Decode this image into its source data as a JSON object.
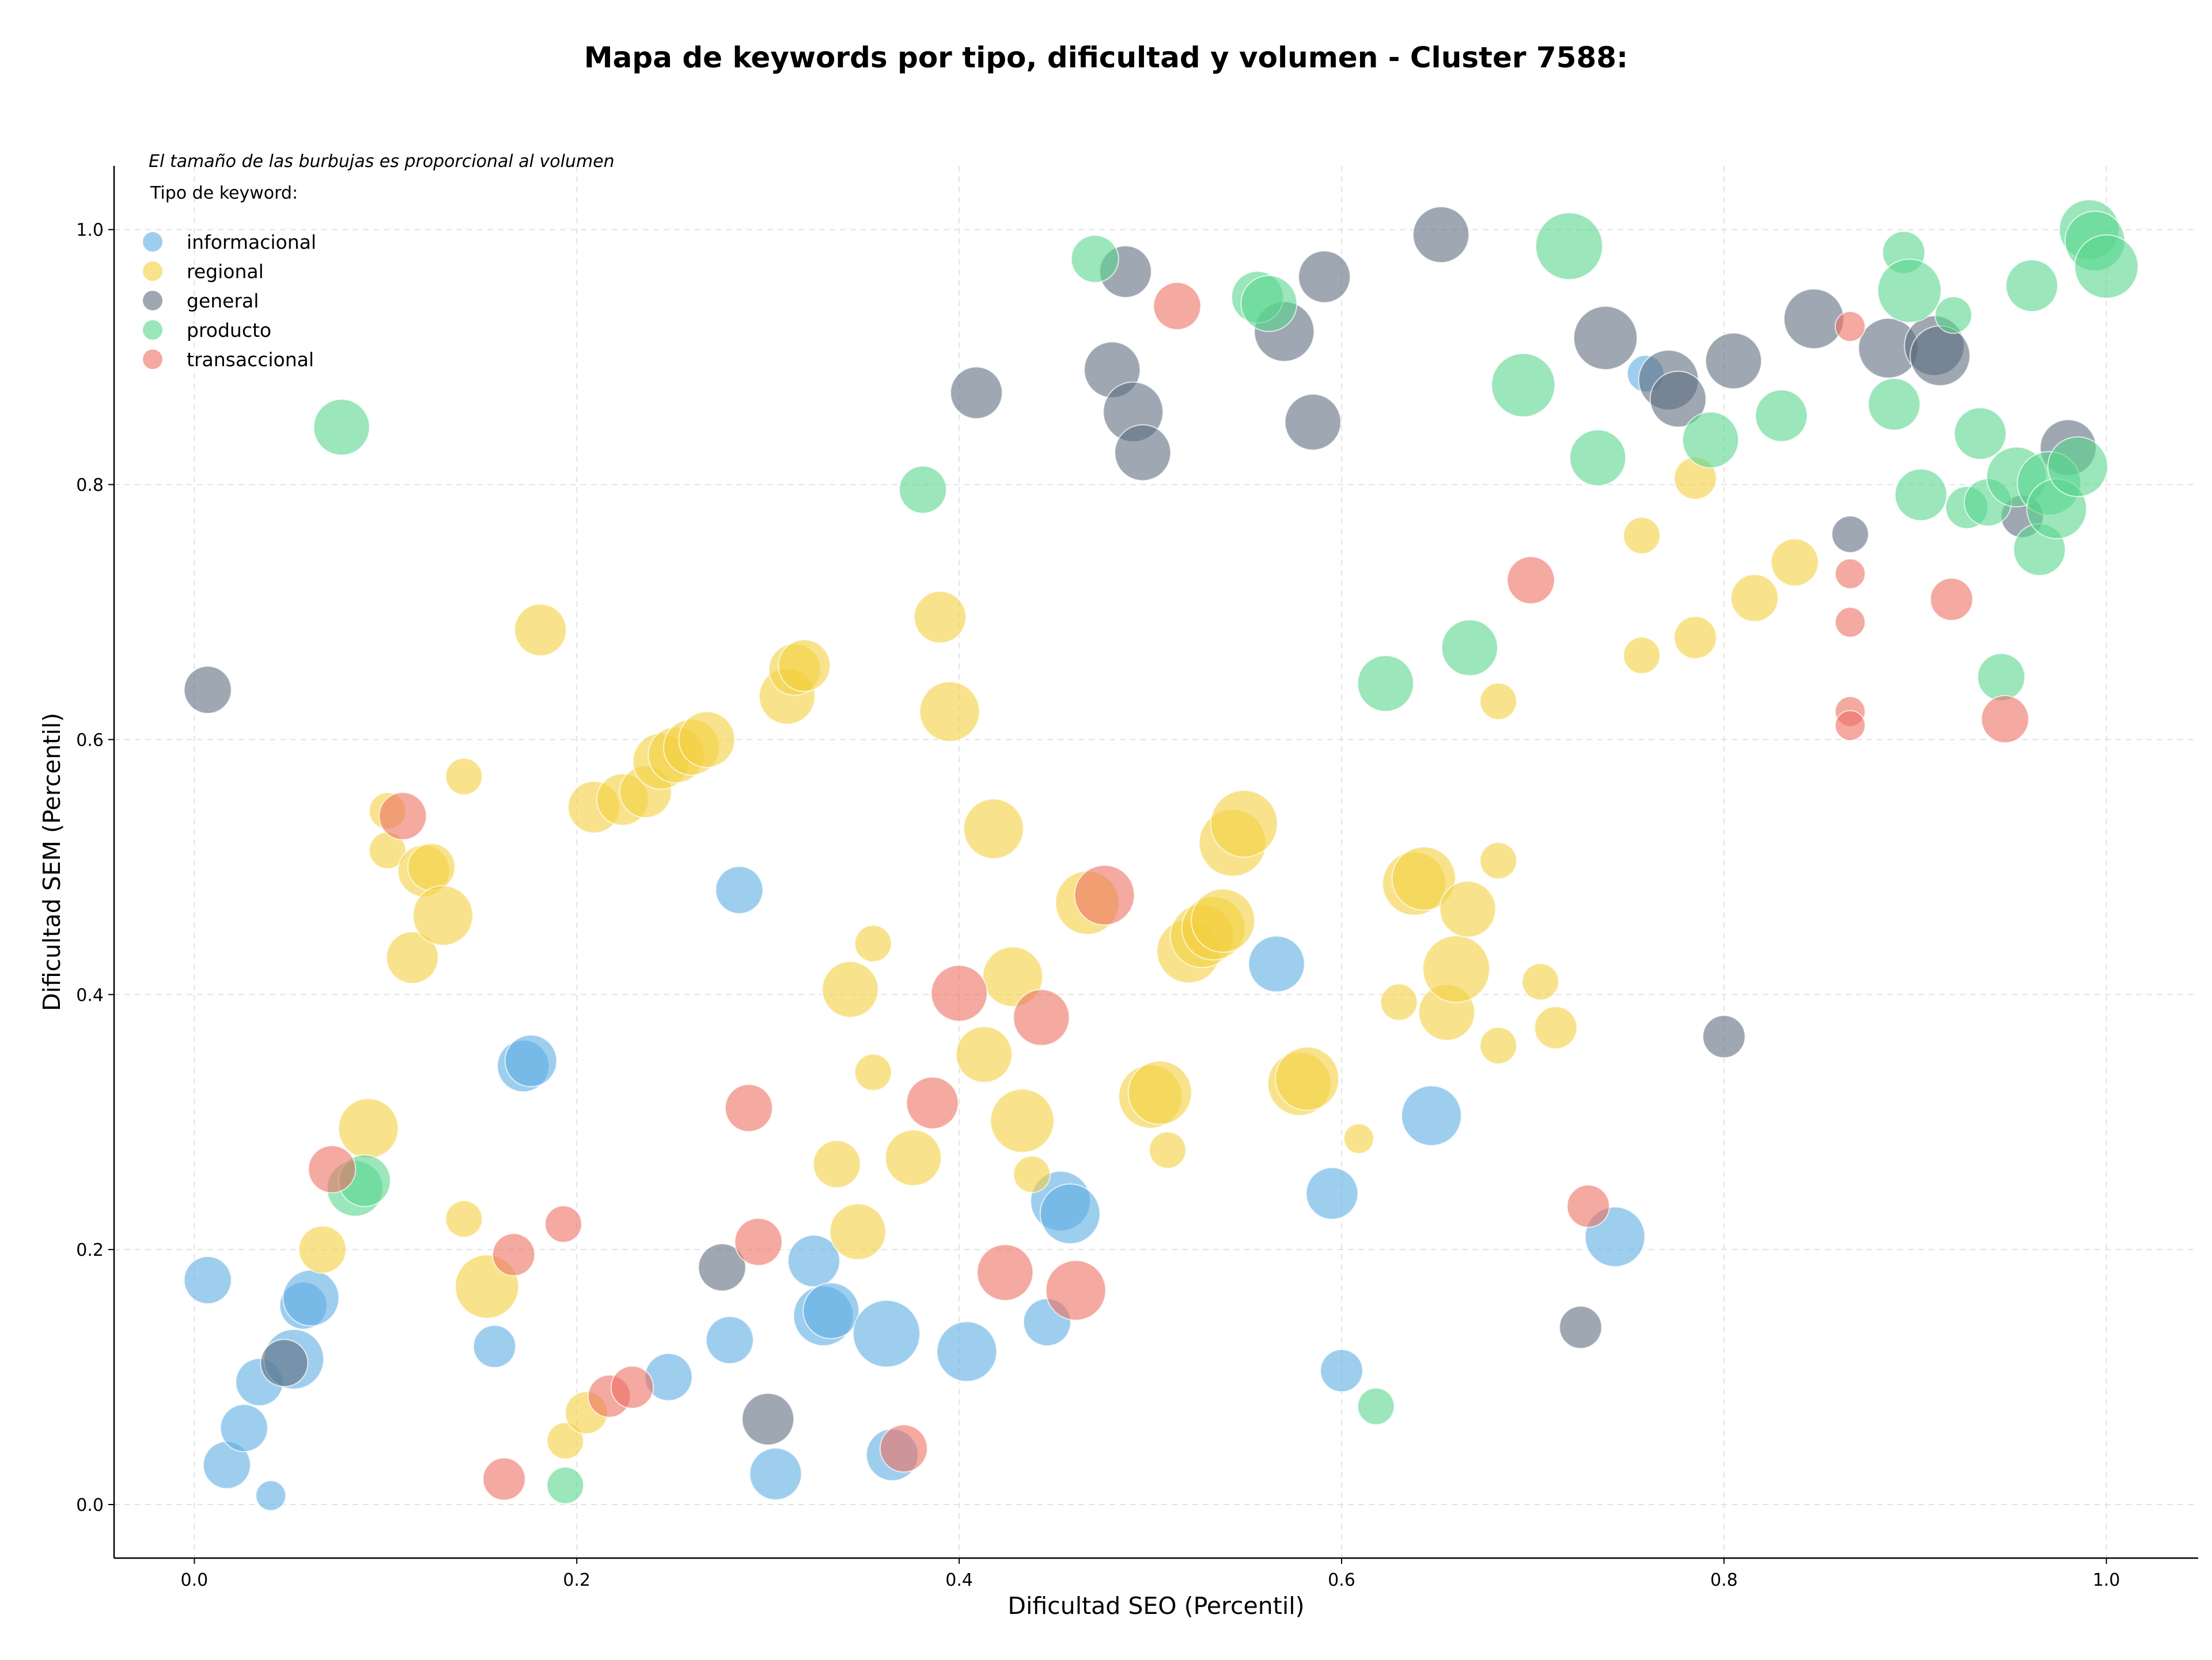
{
  "chart_data": {
    "type": "scatter",
    "title": "Mapa de keywords por tipo, dificultad y volumen - Cluster 7588:",
    "xlabel": "Dificultad SEO (Percentil)",
    "ylabel": "Dificultad SEM (Percentil)",
    "note": "El tamaño de las burbujas es proporcional al volumen",
    "legend_title": "Tipo de keyword:",
    "legend_position": "top-left",
    "xlim": [
      -0.042,
      1.048
    ],
    "ylim": [
      -0.042,
      1.05
    ],
    "xticks": [
      "0.0",
      "0.2",
      "0.4",
      "0.6",
      "0.8",
      "1.0"
    ],
    "yticks": [
      "0.0",
      "0.2",
      "0.4",
      "0.6",
      "0.8",
      "1.0"
    ],
    "grid": true,
    "size_unit": "relative volume",
    "series": [
      {
        "name": "informacional",
        "color": "#5dade2",
        "points": [
          {
            "x": 0.007,
            "y": 0.176,
            "s": 0.5
          },
          {
            "x": 0.017,
            "y": 0.031,
            "s": 0.5
          },
          {
            "x": 0.026,
            "y": 0.06,
            "s": 0.5
          },
          {
            "x": 0.034,
            "y": 0.096,
            "s": 0.5
          },
          {
            "x": 0.04,
            "y": 0.007,
            "s": 0.2
          },
          {
            "x": 0.052,
            "y": 0.114,
            "s": 0.8
          },
          {
            "x": 0.057,
            "y": 0.156,
            "s": 0.5
          },
          {
            "x": 0.061,
            "y": 0.162,
            "s": 0.7
          },
          {
            "x": 0.157,
            "y": 0.124,
            "s": 0.4
          },
          {
            "x": 0.172,
            "y": 0.344,
            "s": 0.6
          },
          {
            "x": 0.176,
            "y": 0.348,
            "s": 0.6
          },
          {
            "x": 0.248,
            "y": 0.1,
            "s": 0.5
          },
          {
            "x": 0.28,
            "y": 0.129,
            "s": 0.5
          },
          {
            "x": 0.285,
            "y": 0.482,
            "s": 0.5
          },
          {
            "x": 0.304,
            "y": 0.024,
            "s": 0.6
          },
          {
            "x": 0.324,
            "y": 0.191,
            "s": 0.6
          },
          {
            "x": 0.329,
            "y": 0.148,
            "s": 0.8
          },
          {
            "x": 0.333,
            "y": 0.152,
            "s": 0.7
          },
          {
            "x": 0.362,
            "y": 0.134,
            "s": 1.0
          },
          {
            "x": 0.365,
            "y": 0.039,
            "s": 0.6
          },
          {
            "x": 0.404,
            "y": 0.12,
            "s": 0.8
          },
          {
            "x": 0.446,
            "y": 0.143,
            "s": 0.5
          },
          {
            "x": 0.453,
            "y": 0.238,
            "s": 0.8
          },
          {
            "x": 0.458,
            "y": 0.228,
            "s": 0.8
          },
          {
            "x": 0.566,
            "y": 0.424,
            "s": 0.7
          },
          {
            "x": 0.595,
            "y": 0.244,
            "s": 0.6
          },
          {
            "x": 0.6,
            "y": 0.105,
            "s": 0.4
          },
          {
            "x": 0.647,
            "y": 0.305,
            "s": 0.8
          },
          {
            "x": 0.743,
            "y": 0.21,
            "s": 0.8
          },
          {
            "x": 0.759,
            "y": 0.887,
            "s": 0.3
          }
        ]
      },
      {
        "name": "regional",
        "color": "#f4d03f",
        "points": [
          {
            "x": 0.067,
            "y": 0.2,
            "s": 0.5
          },
          {
            "x": 0.091,
            "y": 0.295,
            "s": 0.8
          },
          {
            "x": 0.101,
            "y": 0.544,
            "s": 0.3
          },
          {
            "x": 0.101,
            "y": 0.513,
            "s": 0.3
          },
          {
            "x": 0.114,
            "y": 0.429,
            "s": 0.6
          },
          {
            "x": 0.12,
            "y": 0.497,
            "s": 0.6
          },
          {
            "x": 0.124,
            "y": 0.5,
            "s": 0.5
          },
          {
            "x": 0.13,
            "y": 0.462,
            "s": 0.8
          },
          {
            "x": 0.141,
            "y": 0.571,
            "s": 0.3
          },
          {
            "x": 0.141,
            "y": 0.224,
            "s": 0.3
          },
          {
            "x": 0.153,
            "y": 0.171,
            "s": 0.9
          },
          {
            "x": 0.181,
            "y": 0.686,
            "s": 0.6
          },
          {
            "x": 0.194,
            "y": 0.05,
            "s": 0.3
          },
          {
            "x": 0.205,
            "y": 0.072,
            "s": 0.4
          },
          {
            "x": 0.209,
            "y": 0.547,
            "s": 0.6
          },
          {
            "x": 0.224,
            "y": 0.553,
            "s": 0.6
          },
          {
            "x": 0.236,
            "y": 0.559,
            "s": 0.6
          },
          {
            "x": 0.244,
            "y": 0.583,
            "s": 0.7
          },
          {
            "x": 0.252,
            "y": 0.588,
            "s": 0.7
          },
          {
            "x": 0.26,
            "y": 0.594,
            "s": 0.7
          },
          {
            "x": 0.268,
            "y": 0.6,
            "s": 0.7
          },
          {
            "x": 0.31,
            "y": 0.634,
            "s": 0.7
          },
          {
            "x": 0.314,
            "y": 0.655,
            "s": 0.6
          },
          {
            "x": 0.319,
            "y": 0.658,
            "s": 0.6
          },
          {
            "x": 0.336,
            "y": 0.267,
            "s": 0.5
          },
          {
            "x": 0.343,
            "y": 0.404,
            "s": 0.7
          },
          {
            "x": 0.347,
            "y": 0.214,
            "s": 0.7
          },
          {
            "x": 0.355,
            "y": 0.44,
            "s": 0.3
          },
          {
            "x": 0.355,
            "y": 0.339,
            "s": 0.3
          },
          {
            "x": 0.376,
            "y": 0.272,
            "s": 0.7
          },
          {
            "x": 0.39,
            "y": 0.696,
            "s": 0.6
          },
          {
            "x": 0.395,
            "y": 0.622,
            "s": 0.8
          },
          {
            "x": 0.413,
            "y": 0.353,
            "s": 0.7
          },
          {
            "x": 0.418,
            "y": 0.53,
            "s": 0.8
          },
          {
            "x": 0.428,
            "y": 0.414,
            "s": 0.8
          },
          {
            "x": 0.433,
            "y": 0.301,
            "s": 0.9
          },
          {
            "x": 0.438,
            "y": 0.259,
            "s": 0.3
          },
          {
            "x": 0.467,
            "y": 0.472,
            "s": 0.9
          },
          {
            "x": 0.5,
            "y": 0.32,
            "s": 0.9
          },
          {
            "x": 0.505,
            "y": 0.323,
            "s": 0.9
          },
          {
            "x": 0.509,
            "y": 0.278,
            "s": 0.3
          },
          {
            "x": 0.52,
            "y": 0.434,
            "s": 0.9
          },
          {
            "x": 0.527,
            "y": 0.446,
            "s": 0.9
          },
          {
            "x": 0.533,
            "y": 0.452,
            "s": 0.9
          },
          {
            "x": 0.538,
            "y": 0.458,
            "s": 0.9
          },
          {
            "x": 0.543,
            "y": 0.519,
            "s": 1.0
          },
          {
            "x": 0.549,
            "y": 0.534,
            "s": 1.0
          },
          {
            "x": 0.578,
            "y": 0.33,
            "s": 0.9
          },
          {
            "x": 0.582,
            "y": 0.334,
            "s": 0.9
          },
          {
            "x": 0.609,
            "y": 0.287,
            "s": 0.2
          },
          {
            "x": 0.63,
            "y": 0.394,
            "s": 0.3
          },
          {
            "x": 0.638,
            "y": 0.487,
            "s": 0.9
          },
          {
            "x": 0.643,
            "y": 0.491,
            "s": 0.9
          },
          {
            "x": 0.655,
            "y": 0.386,
            "s": 0.7
          },
          {
            "x": 0.66,
            "y": 0.42,
            "s": 1.0
          },
          {
            "x": 0.666,
            "y": 0.467,
            "s": 0.7
          },
          {
            "x": 0.682,
            "y": 0.63,
            "s": 0.3
          },
          {
            "x": 0.682,
            "y": 0.505,
            "s": 0.3
          },
          {
            "x": 0.682,
            "y": 0.36,
            "s": 0.3
          },
          {
            "x": 0.704,
            "y": 0.41,
            "s": 0.3
          },
          {
            "x": 0.712,
            "y": 0.374,
            "s": 0.4
          },
          {
            "x": 0.757,
            "y": 0.76,
            "s": 0.3
          },
          {
            "x": 0.757,
            "y": 0.666,
            "s": 0.3
          },
          {
            "x": 0.785,
            "y": 0.805,
            "s": 0.4
          },
          {
            "x": 0.785,
            "y": 0.68,
            "s": 0.4
          },
          {
            "x": 0.816,
            "y": 0.711,
            "s": 0.5
          },
          {
            "x": 0.837,
            "y": 0.739,
            "s": 0.5
          }
        ]
      },
      {
        "name": "general",
        "color": "#5d6d7e",
        "points": [
          {
            "x": 0.007,
            "y": 0.639,
            "s": 0.5
          },
          {
            "x": 0.047,
            "y": 0.111,
            "s": 0.5
          },
          {
            "x": 0.276,
            "y": 0.186,
            "s": 0.5
          },
          {
            "x": 0.3,
            "y": 0.067,
            "s": 0.6
          },
          {
            "x": 0.409,
            "y": 0.872,
            "s": 0.6
          },
          {
            "x": 0.48,
            "y": 0.89,
            "s": 0.7
          },
          {
            "x": 0.487,
            "y": 0.967,
            "s": 0.6
          },
          {
            "x": 0.491,
            "y": 0.857,
            "s": 0.8
          },
          {
            "x": 0.496,
            "y": 0.825,
            "s": 0.7
          },
          {
            "x": 0.57,
            "y": 0.92,
            "s": 0.8
          },
          {
            "x": 0.585,
            "y": 0.849,
            "s": 0.7
          },
          {
            "x": 0.591,
            "y": 0.963,
            "s": 0.6
          },
          {
            "x": 0.652,
            "y": 0.996,
            "s": 0.7
          },
          {
            "x": 0.725,
            "y": 0.139,
            "s": 0.4
          },
          {
            "x": 0.738,
            "y": 0.915,
            "s": 0.9
          },
          {
            "x": 0.771,
            "y": 0.882,
            "s": 0.8
          },
          {
            "x": 0.776,
            "y": 0.867,
            "s": 0.7
          },
          {
            "x": 0.8,
            "y": 0.367,
            "s": 0.4
          },
          {
            "x": 0.805,
            "y": 0.897,
            "s": 0.7
          },
          {
            "x": 0.847,
            "y": 0.93,
            "s": 0.8
          },
          {
            "x": 0.866,
            "y": 0.761,
            "s": 0.3
          },
          {
            "x": 0.886,
            "y": 0.907,
            "s": 0.8
          },
          {
            "x": 0.91,
            "y": 0.909,
            "s": 0.8
          },
          {
            "x": 0.913,
            "y": 0.901,
            "s": 0.8
          },
          {
            "x": 0.956,
            "y": 0.775,
            "s": 0.4
          },
          {
            "x": 0.98,
            "y": 0.829,
            "s": 0.7
          }
        ]
      },
      {
        "name": "producto",
        "color": "#58d68d",
        "points": [
          {
            "x": 0.077,
            "y": 0.845,
            "s": 0.7
          },
          {
            "x": 0.084,
            "y": 0.248,
            "s": 0.7
          },
          {
            "x": 0.089,
            "y": 0.254,
            "s": 0.6
          },
          {
            "x": 0.194,
            "y": 0.015,
            "s": 0.3
          },
          {
            "x": 0.381,
            "y": 0.796,
            "s": 0.5
          },
          {
            "x": 0.471,
            "y": 0.977,
            "s": 0.5
          },
          {
            "x": 0.556,
            "y": 0.947,
            "s": 0.6
          },
          {
            "x": 0.562,
            "y": 0.942,
            "s": 0.7
          },
          {
            "x": 0.618,
            "y": 0.077,
            "s": 0.3
          },
          {
            "x": 0.623,
            "y": 0.644,
            "s": 0.7
          },
          {
            "x": 0.667,
            "y": 0.672,
            "s": 0.7
          },
          {
            "x": 0.695,
            "y": 0.878,
            "s": 0.9
          },
          {
            "x": 0.719,
            "y": 0.987,
            "s": 1.0
          },
          {
            "x": 0.734,
            "y": 0.821,
            "s": 0.7
          },
          {
            "x": 0.793,
            "y": 0.835,
            "s": 0.7
          },
          {
            "x": 0.83,
            "y": 0.854,
            "s": 0.6
          },
          {
            "x": 0.889,
            "y": 0.863,
            "s": 0.6
          },
          {
            "x": 0.894,
            "y": 0.982,
            "s": 0.4
          },
          {
            "x": 0.897,
            "y": 0.952,
            "s": 0.9
          },
          {
            "x": 0.903,
            "y": 0.792,
            "s": 0.6
          },
          {
            "x": 0.92,
            "y": 0.933,
            "s": 0.3
          },
          {
            "x": 0.927,
            "y": 0.782,
            "s": 0.4
          },
          {
            "x": 0.934,
            "y": 0.84,
            "s": 0.6
          },
          {
            "x": 0.938,
            "y": 0.786,
            "s": 0.5
          },
          {
            "x": 0.945,
            "y": 0.649,
            "s": 0.5
          },
          {
            "x": 0.953,
            "y": 0.806,
            "s": 0.8
          },
          {
            "x": 0.961,
            "y": 0.956,
            "s": 0.6
          },
          {
            "x": 0.965,
            "y": 0.749,
            "s": 0.6
          },
          {
            "x": 0.97,
            "y": 0.801,
            "s": 0.9
          },
          {
            "x": 0.974,
            "y": 0.781,
            "s": 0.8
          },
          {
            "x": 0.985,
            "y": 0.814,
            "s": 0.8
          },
          {
            "x": 0.991,
            "y": 1.0,
            "s": 0.8
          },
          {
            "x": 0.994,
            "y": 0.991,
            "s": 0.8
          },
          {
            "x": 1.0,
            "y": 0.971,
            "s": 0.9
          }
        ]
      },
      {
        "name": "transaccional",
        "color": "#ec7063",
        "points": [
          {
            "x": 0.072,
            "y": 0.263,
            "s": 0.5
          },
          {
            "x": 0.109,
            "y": 0.54,
            "s": 0.5
          },
          {
            "x": 0.162,
            "y": 0.02,
            "s": 0.4
          },
          {
            "x": 0.167,
            "y": 0.196,
            "s": 0.4
          },
          {
            "x": 0.193,
            "y": 0.22,
            "s": 0.3
          },
          {
            "x": 0.217,
            "y": 0.085,
            "s": 0.4
          },
          {
            "x": 0.229,
            "y": 0.092,
            "s": 0.4
          },
          {
            "x": 0.29,
            "y": 0.311,
            "s": 0.5
          },
          {
            "x": 0.295,
            "y": 0.206,
            "s": 0.5
          },
          {
            "x": 0.371,
            "y": 0.044,
            "s": 0.5
          },
          {
            "x": 0.386,
            "y": 0.315,
            "s": 0.6
          },
          {
            "x": 0.4,
            "y": 0.401,
            "s": 0.7
          },
          {
            "x": 0.424,
            "y": 0.182,
            "s": 0.7
          },
          {
            "x": 0.443,
            "y": 0.382,
            "s": 0.7
          },
          {
            "x": 0.461,
            "y": 0.168,
            "s": 0.8
          },
          {
            "x": 0.476,
            "y": 0.478,
            "s": 0.8
          },
          {
            "x": 0.514,
            "y": 0.94,
            "s": 0.5
          },
          {
            "x": 0.699,
            "y": 0.725,
            "s": 0.5
          },
          {
            "x": 0.729,
            "y": 0.234,
            "s": 0.4
          },
          {
            "x": 0.866,
            "y": 0.924,
            "s": 0.2
          },
          {
            "x": 0.866,
            "y": 0.73,
            "s": 0.2
          },
          {
            "x": 0.866,
            "y": 0.692,
            "s": 0.2
          },
          {
            "x": 0.866,
            "y": 0.622,
            "s": 0.2
          },
          {
            "x": 0.866,
            "y": 0.611,
            "s": 0.2
          },
          {
            "x": 0.919,
            "y": 0.71,
            "s": 0.4
          },
          {
            "x": 0.947,
            "y": 0.616,
            "s": 0.5
          }
        ]
      }
    ]
  }
}
